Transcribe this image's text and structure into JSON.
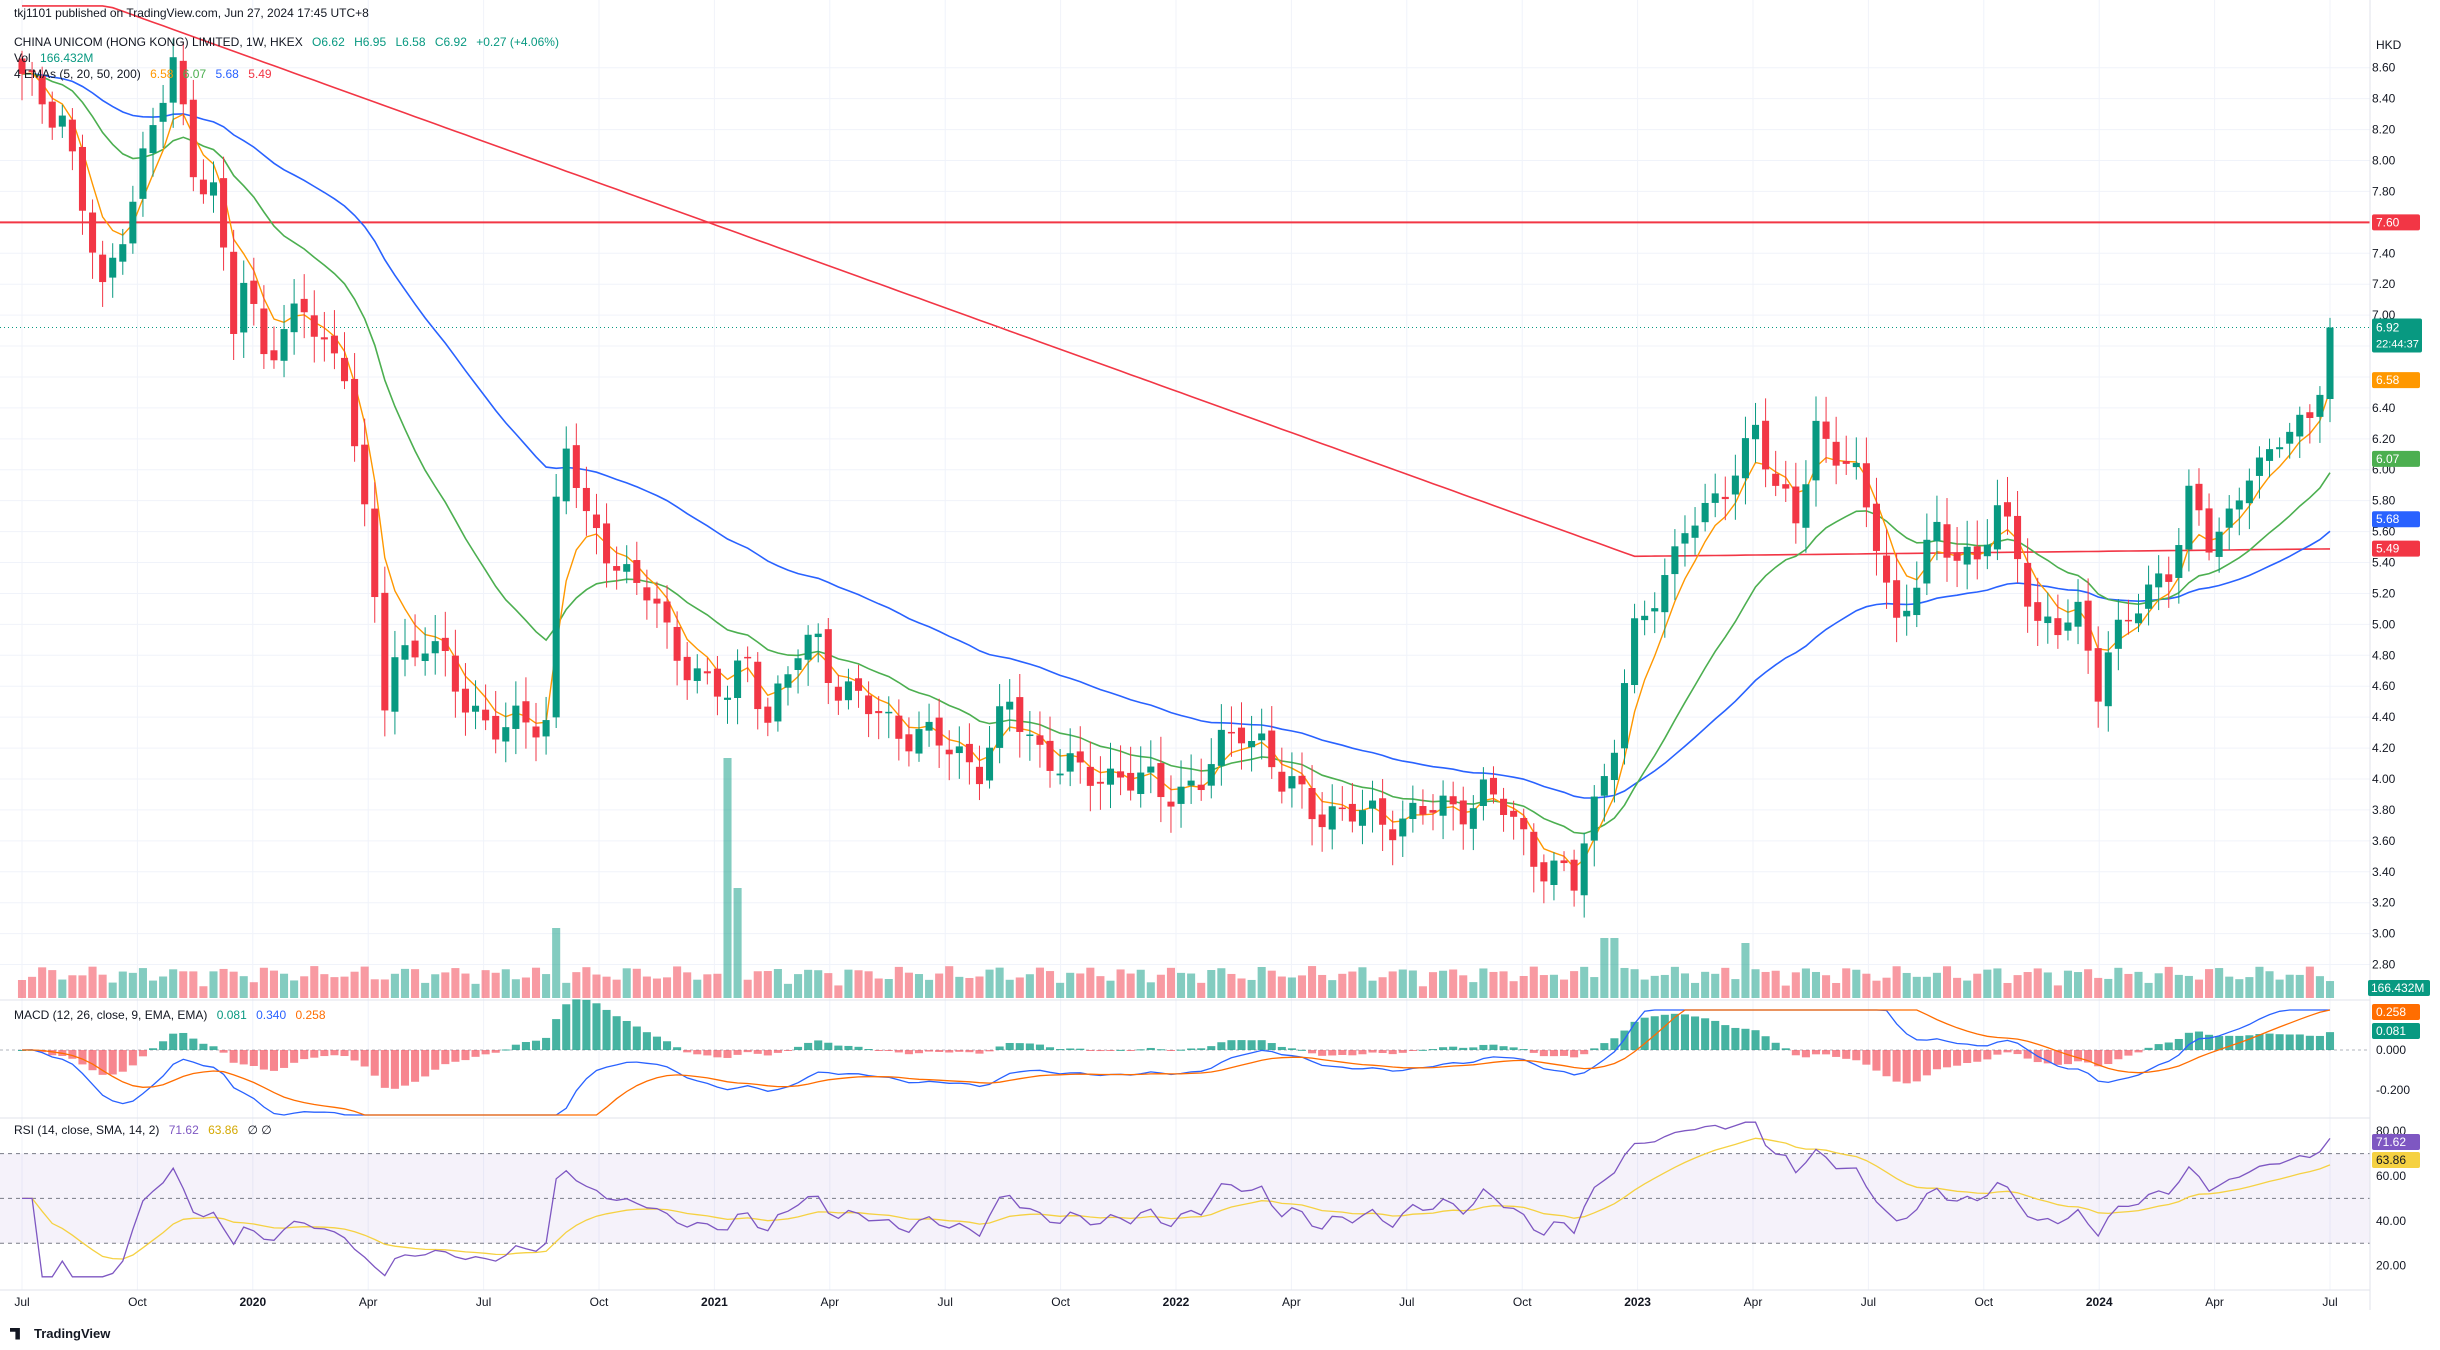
{
  "header": {
    "credit": "tkj1101 published on TradingView.com, Jun 27, 2024 17:45 UTC+8",
    "symbol_line": "CHINA UNICOM (HONG KONG) LIMITED, 1W, HKEX",
    "ohlc": {
      "o": "O6.62",
      "h": "H6.95",
      "l": "L6.58",
      "c": "C6.92",
      "chg": "+0.27 (+4.06%)"
    },
    "vol_label": "Vol",
    "vol_value": "166.432M",
    "emas_label": "4 EMAs (5, 20, 50, 200)",
    "ema_values": [
      "6.58",
      "6.07",
      "5.68",
      "5.49"
    ],
    "macd_label": "MACD (12, 26, close, 9, EMA, EMA)",
    "macd_values": [
      "0.081",
      "0.340",
      "0.258"
    ],
    "rsi_label": "RSI (14, close, SMA, 14, 2)",
    "rsi_values": [
      "71.62",
      "63.86"
    ],
    "rsi_extra": "∅ ∅"
  },
  "currency": "HKD",
  "logo_text": "TradingView",
  "price_badges": {
    "resistance": "7.60",
    "last": "6.92",
    "countdown": "22:44:37",
    "ema5": "6.58",
    "ema20": "6.07",
    "ema50": "5.68",
    "ema200": "5.49",
    "volume": "166.432M",
    "macd_signal": "0.258",
    "macd_hist": "0.081",
    "rsi": "71.62",
    "rsi_ma": "63.86"
  },
  "colors": {
    "up": "#089981",
    "down": "#f23645",
    "ema5": "#ff9800",
    "ema20": "#4caf50",
    "ema50": "#2962ff",
    "ema200": "#f23645",
    "macd": "#2962ff",
    "signal": "#ff6d00",
    "rsi": "#7e57c2",
    "rsi_ma": "#f5d142",
    "resistance": "#f23645"
  },
  "chart_data": {
    "type": "candlestick",
    "interval": "1W",
    "price_axis": {
      "ticks": [
        "8.60",
        "8.40",
        "8.20",
        "8.00",
        "7.80",
        "7.60",
        "7.40",
        "7.20",
        "7.00",
        "6.80",
        "6.60",
        "6.40",
        "6.20",
        "6.00",
        "5.80",
        "5.60",
        "5.40",
        "5.20",
        "5.00",
        "4.80",
        "4.60",
        "4.40",
        "4.20",
        "4.00",
        "3.80",
        "3.60",
        "3.40",
        "3.20",
        "3.00",
        "2.80"
      ],
      "ylim": [
        2.7,
        8.65
      ]
    },
    "time_axis": [
      "Jul",
      "Oct",
      "2020",
      "Apr",
      "Jul",
      "Oct",
      "2021",
      "Apr",
      "Jul",
      "Oct",
      "2022",
      "Apr",
      "Jul",
      "Oct",
      "2023",
      "Apr",
      "Jul",
      "Oct",
      "2024",
      "Apr",
      "Jul"
    ],
    "resistance_level": 7.6,
    "last_price": 6.92,
    "macd_axis": [
      "0.000",
      "-0.200"
    ],
    "rsi_axis": [
      "80.00",
      "60.00",
      "40.00",
      "20.00"
    ],
    "rsi_bands": [
      70,
      50,
      30
    ],
    "close_keypoints": [
      [
        0,
        8.5
      ],
      [
        4,
        8.3
      ],
      [
        8,
        7.1
      ],
      [
        10,
        7.6
      ],
      [
        14,
        8.4
      ],
      [
        15,
        8.6
      ],
      [
        17,
        8.0
      ],
      [
        19,
        7.8
      ],
      [
        21,
        6.9
      ],
      [
        22,
        7.2
      ],
      [
        24,
        6.8
      ],
      [
        28,
        7.0
      ],
      [
        30,
        6.8
      ],
      [
        32,
        6.7
      ],
      [
        33,
        6.2
      ],
      [
        35,
        5.1
      ],
      [
        36,
        4.5
      ],
      [
        37,
        4.8
      ],
      [
        40,
        4.9
      ],
      [
        44,
        4.5
      ],
      [
        48,
        4.3
      ],
      [
        52,
        4.4
      ],
      [
        53,
        5.8
      ],
      [
        54,
        6.2
      ],
      [
        56,
        5.6
      ],
      [
        58,
        5.5
      ],
      [
        62,
        5.2
      ],
      [
        64,
        4.9
      ],
      [
        67,
        4.7
      ],
      [
        70,
        4.5
      ],
      [
        72,
        4.8
      ],
      [
        74,
        4.4
      ],
      [
        77,
        4.8
      ],
      [
        79,
        4.9
      ],
      [
        81,
        4.6
      ],
      [
        85,
        4.4
      ],
      [
        90,
        4.25
      ],
      [
        95,
        4.1
      ],
      [
        98,
        4.45
      ],
      [
        101,
        4.2
      ],
      [
        105,
        4.0
      ],
      [
        109,
        4.05
      ],
      [
        113,
        3.9
      ],
      [
        117,
        4.0
      ],
      [
        121,
        4.35
      ],
      [
        123,
        4.25
      ],
      [
        125,
        3.95
      ],
      [
        129,
        3.8
      ],
      [
        133,
        3.75
      ],
      [
        137,
        3.75
      ],
      [
        141,
        3.8
      ],
      [
        145,
        3.9
      ],
      [
        147,
        3.8
      ],
      [
        151,
        3.45
      ],
      [
        154,
        3.3
      ],
      [
        155,
        3.6
      ],
      [
        158,
        4.3
      ],
      [
        160,
        4.9
      ],
      [
        163,
        5.3
      ],
      [
        165,
        5.7
      ],
      [
        167,
        5.65
      ],
      [
        170,
        6.0
      ],
      [
        172,
        6.35
      ],
      [
        174,
        5.8
      ],
      [
        176,
        5.7
      ],
      [
        178,
        6.3
      ],
      [
        180,
        6.1
      ],
      [
        182,
        5.9
      ],
      [
        184,
        5.6
      ],
      [
        186,
        5.0
      ],
      [
        188,
        5.25
      ],
      [
        190,
        5.6
      ],
      [
        192,
        5.5
      ],
      [
        194,
        5.4
      ],
      [
        196,
        5.7
      ],
      [
        198,
        5.5
      ],
      [
        200,
        5.0
      ],
      [
        202,
        4.95
      ],
      [
        204,
        5.05
      ],
      [
        206,
        4.65
      ],
      [
        207,
        4.85
      ],
      [
        209,
        5.0
      ],
      [
        211,
        5.2
      ],
      [
        213,
        5.4
      ],
      [
        215,
        5.8
      ],
      [
        217,
        5.5
      ],
      [
        219,
        5.7
      ],
      [
        221,
        6.05
      ],
      [
        223,
        6.0
      ],
      [
        225,
        6.3
      ],
      [
        227,
        6.35
      ],
      [
        228,
        6.6
      ],
      [
        229,
        6.92
      ]
    ]
  }
}
